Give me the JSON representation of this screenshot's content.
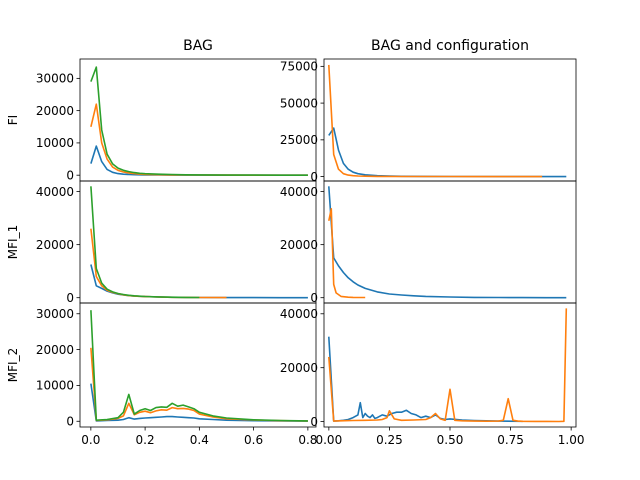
{
  "chart_data": [
    {
      "type": "line",
      "title": "BAG",
      "xlabel": "",
      "ylabel": "FI",
      "xlim": [
        -0.04,
        0.83
      ],
      "ylim": [
        -1800,
        36000
      ],
      "yticks": [
        0,
        10000,
        20000,
        30000
      ],
      "ytick_labels": [
        "0",
        "10000",
        "20000",
        "30000"
      ],
      "xticks": [],
      "xtick_labels": [],
      "series": [
        {
          "color": "#1f77b4",
          "x": [
            0,
            0.02,
            0.04,
            0.06,
            0.08,
            0.1,
            0.12,
            0.14,
            0.16,
            0.18,
            0.2,
            0.25,
            0.3,
            0.35,
            0.4,
            0.5,
            0.6,
            0.7,
            0.8
          ],
          "y": [
            3600,
            9000,
            4200,
            1800,
            900,
            500,
            300,
            200,
            150,
            110,
            90,
            60,
            40,
            30,
            20,
            10,
            5,
            3,
            2
          ]
        },
        {
          "color": "#ff7f0e",
          "x": [
            0,
            0.02,
            0.04,
            0.06,
            0.08,
            0.1,
            0.12,
            0.14,
            0.16,
            0.18,
            0.2,
            0.25,
            0.3,
            0.35,
            0.4,
            0.5,
            0.6,
            0.7,
            0.8
          ],
          "y": [
            15000,
            22000,
            10000,
            5000,
            2500,
            1500,
            1000,
            700,
            500,
            350,
            250,
            150,
            100,
            70,
            50,
            25,
            12,
            6,
            3
          ]
        },
        {
          "color": "#2ca02c",
          "x": [
            0,
            0.02,
            0.04,
            0.06,
            0.08,
            0.1,
            0.12,
            0.14,
            0.16,
            0.18,
            0.2,
            0.25,
            0.3,
            0.35,
            0.4,
            0.5,
            0.6,
            0.7,
            0.8
          ],
          "y": [
            29000,
            33500,
            14000,
            6500,
            3500,
            2200,
            1500,
            1100,
            800,
            600,
            450,
            300,
            200,
            130,
            90,
            40,
            20,
            10,
            5
          ]
        }
      ]
    },
    {
      "type": "line",
      "title": "BAG and configuration",
      "xlabel": "",
      "ylabel": "",
      "xlim": [
        -0.02,
        1.02
      ],
      "ylim": [
        -3000,
        80000
      ],
      "yticks": [
        0,
        25000,
        50000,
        75000
      ],
      "ytick_labels": [
        "0",
        "25000",
        "50000",
        "75000"
      ],
      "xticks": [],
      "xtick_labels": [],
      "series": [
        {
          "color": "#1f77b4",
          "x": [
            0,
            0.02,
            0.04,
            0.06,
            0.08,
            0.1,
            0.12,
            0.15,
            0.2,
            0.25,
            0.3,
            0.4,
            0.5,
            0.6,
            0.7,
            0.8,
            0.9,
            0.98
          ],
          "y": [
            28000,
            33000,
            18000,
            9000,
            5000,
            3000,
            2000,
            1200,
            600,
            350,
            200,
            100,
            60,
            40,
            25,
            15,
            10,
            5
          ]
        },
        {
          "color": "#ff7f0e",
          "x": [
            0,
            0.02,
            0.04,
            0.06,
            0.08,
            0.1,
            0.12,
            0.15,
            0.2,
            0.3,
            0.4,
            0.5,
            0.6,
            0.7,
            0.8,
            0.88
          ],
          "y": [
            76000,
            15000,
            5000,
            2000,
            1000,
            600,
            400,
            250,
            150,
            80,
            50,
            30,
            20,
            10,
            5,
            3
          ]
        }
      ]
    },
    {
      "type": "line",
      "title": "",
      "xlabel": "",
      "ylabel": "MFI_1",
      "xlim": [
        -0.04,
        0.83
      ],
      "ylim": [
        -2000,
        44000
      ],
      "yticks": [
        0,
        20000,
        40000
      ],
      "ytick_labels": [
        "0",
        "20000",
        "40000"
      ],
      "xticks": [],
      "xtick_labels": [],
      "series": [
        {
          "color": "#1f77b4",
          "x": [
            0,
            0.02,
            0.04,
            0.06,
            0.08,
            0.1,
            0.12,
            0.14,
            0.16,
            0.2,
            0.25,
            0.3,
            0.4,
            0.5,
            0.6,
            0.7,
            0.8
          ],
          "y": [
            12500,
            4500,
            3500,
            2500,
            1800,
            1300,
            1000,
            800,
            600,
            400,
            250,
            150,
            80,
            40,
            20,
            10,
            5
          ]
        },
        {
          "color": "#ff7f0e",
          "x": [
            0,
            0.02,
            0.04,
            0.06,
            0.08,
            0.1,
            0.12,
            0.14,
            0.16,
            0.2,
            0.25,
            0.3,
            0.4,
            0.5
          ],
          "y": [
            26000,
            8000,
            4500,
            2800,
            2000,
            1500,
            1100,
            800,
            600,
            400,
            250,
            150,
            80,
            40
          ]
        },
        {
          "color": "#2ca02c",
          "x": [
            0,
            0.02,
            0.04,
            0.06,
            0.08,
            0.1,
            0.12,
            0.14,
            0.16,
            0.2,
            0.25,
            0.3,
            0.35,
            0.4
          ],
          "y": [
            42000,
            11000,
            5500,
            3200,
            2200,
            1600,
            1200,
            900,
            700,
            450,
            300,
            180,
            110,
            70
          ]
        }
      ]
    },
    {
      "type": "line",
      "title": "",
      "xlabel": "",
      "ylabel": "",
      "xlim": [
        -0.02,
        1.02
      ],
      "ylim": [
        -2000,
        44000
      ],
      "yticks": [
        0,
        20000,
        40000
      ],
      "ytick_labels": [
        "0",
        "20000",
        "40000"
      ],
      "xticks": [],
      "xtick_labels": [],
      "series": [
        {
          "color": "#1f77b4",
          "x": [
            0,
            0.02,
            0.04,
            0.06,
            0.08,
            0.1,
            0.12,
            0.15,
            0.2,
            0.25,
            0.3,
            0.35,
            0.4,
            0.5,
            0.6,
            0.7,
            0.8,
            0.9,
            0.98
          ],
          "y": [
            42000,
            15000,
            12000,
            9500,
            7500,
            6000,
            4800,
            3500,
            2200,
            1400,
            1000,
            700,
            500,
            250,
            120,
            60,
            30,
            15,
            8
          ]
        },
        {
          "color": "#ff7f0e",
          "x": [
            0,
            0.01,
            0.02,
            0.03,
            0.05,
            0.08,
            0.1,
            0.13,
            0.15
          ],
          "y": [
            29000,
            33500,
            5000,
            1800,
            500,
            200,
            120,
            80,
            60
          ]
        }
      ]
    },
    {
      "type": "line",
      "title": "",
      "xlabel": "",
      "ylabel": "MFI_2",
      "xlim": [
        -0.04,
        0.83
      ],
      "ylim": [
        -1600,
        33000
      ],
      "yticks": [
        0,
        10000,
        20000,
        30000
      ],
      "ytick_labels": [
        "0",
        "10000",
        "20000",
        "30000"
      ],
      "xticks": [
        0.0,
        0.2,
        0.4,
        0.6,
        0.8
      ],
      "xtick_labels": [
        "0.0",
        "0.2",
        "0.4",
        "0.6",
        "0.8"
      ],
      "series": [
        {
          "color": "#1f77b4",
          "x": [
            0,
            0.02,
            0.06,
            0.1,
            0.12,
            0.14,
            0.16,
            0.18,
            0.2,
            0.22,
            0.24,
            0.26,
            0.28,
            0.3,
            0.32,
            0.34,
            0.36,
            0.38,
            0.4,
            0.45,
            0.5,
            0.6,
            0.7,
            0.8
          ],
          "y": [
            10500,
            100,
            200,
            300,
            500,
            1000,
            600,
            800,
            900,
            1000,
            1100,
            1200,
            1300,
            1300,
            1200,
            1100,
            1000,
            900,
            700,
            500,
            300,
            150,
            80,
            40
          ]
        },
        {
          "color": "#ff7f0e",
          "x": [
            0,
            0.02,
            0.06,
            0.1,
            0.12,
            0.14,
            0.16,
            0.18,
            0.2,
            0.22,
            0.24,
            0.26,
            0.28,
            0.3,
            0.32,
            0.34,
            0.36,
            0.38,
            0.4,
            0.45,
            0.5,
            0.6,
            0.7,
            0.8
          ],
          "y": [
            20500,
            200,
            400,
            800,
            1500,
            5000,
            1800,
            2500,
            2800,
            2400,
            2900,
            3200,
            3100,
            3800,
            3500,
            3600,
            3400,
            3000,
            2000,
            1200,
            700,
            350,
            150,
            80
          ]
        },
        {
          "color": "#2ca02c",
          "x": [
            0,
            0.02,
            0.06,
            0.1,
            0.12,
            0.14,
            0.16,
            0.18,
            0.2,
            0.22,
            0.24,
            0.26,
            0.28,
            0.3,
            0.32,
            0.34,
            0.36,
            0.38,
            0.4,
            0.45,
            0.5,
            0.6,
            0.7,
            0.8
          ],
          "y": [
            31000,
            300,
            500,
            1000,
            2500,
            7500,
            2000,
            3000,
            3500,
            3000,
            3800,
            4000,
            3900,
            5000,
            4200,
            4500,
            4000,
            3500,
            2500,
            1500,
            900,
            400,
            200,
            100
          ]
        }
      ]
    },
    {
      "type": "line",
      "title": "",
      "xlabel": "",
      "ylabel": "",
      "xlim": [
        -0.02,
        1.02
      ],
      "ylim": [
        -2000,
        44000
      ],
      "yticks": [
        0,
        20000,
        40000
      ],
      "ytick_labels": [
        "0",
        "20000",
        "40000"
      ],
      "xticks": [
        0.0,
        0.25,
        0.5,
        0.75,
        1.0
      ],
      "xtick_labels": [
        "0.00",
        "0.25",
        "0.50",
        "0.75",
        "1.00"
      ],
      "series": [
        {
          "color": "#1f77b4",
          "x": [
            0,
            0.02,
            0.04,
            0.06,
            0.08,
            0.1,
            0.12,
            0.13,
            0.14,
            0.15,
            0.16,
            0.17,
            0.18,
            0.19,
            0.2,
            0.22,
            0.24,
            0.26,
            0.28,
            0.3,
            0.32,
            0.34,
            0.36,
            0.38,
            0.4,
            0.42,
            0.44,
            0.46,
            0.48,
            0.5,
            0.55,
            0.6,
            0.7,
            0.8
          ],
          "y": [
            31500,
            200,
            300,
            500,
            800,
            1500,
            2500,
            7000,
            1500,
            3000,
            2000,
            1500,
            2500,
            1200,
            1500,
            2500,
            2000,
            3000,
            3500,
            3500,
            4200,
            3000,
            2500,
            1500,
            2000,
            1500,
            2500,
            1200,
            800,
            1000,
            600,
            400,
            200,
            100
          ]
        },
        {
          "color": "#ff7f0e",
          "x": [
            0,
            0.02,
            0.05,
            0.1,
            0.15,
            0.2,
            0.22,
            0.24,
            0.25,
            0.27,
            0.3,
            0.35,
            0.4,
            0.42,
            0.44,
            0.46,
            0.48,
            0.5,
            0.52,
            0.55,
            0.6,
            0.65,
            0.7,
            0.72,
            0.74,
            0.76,
            0.78,
            0.8,
            0.85,
            0.9,
            0.95,
            0.97,
            0.98
          ],
          "y": [
            24000,
            200,
            300,
            400,
            500,
            600,
            800,
            1500,
            4000,
            1000,
            500,
            600,
            800,
            1500,
            3000,
            1000,
            500,
            12000,
            500,
            300,
            200,
            150,
            200,
            500,
            8500,
            500,
            200,
            100,
            80,
            60,
            40,
            100,
            42000
          ]
        }
      ]
    }
  ]
}
